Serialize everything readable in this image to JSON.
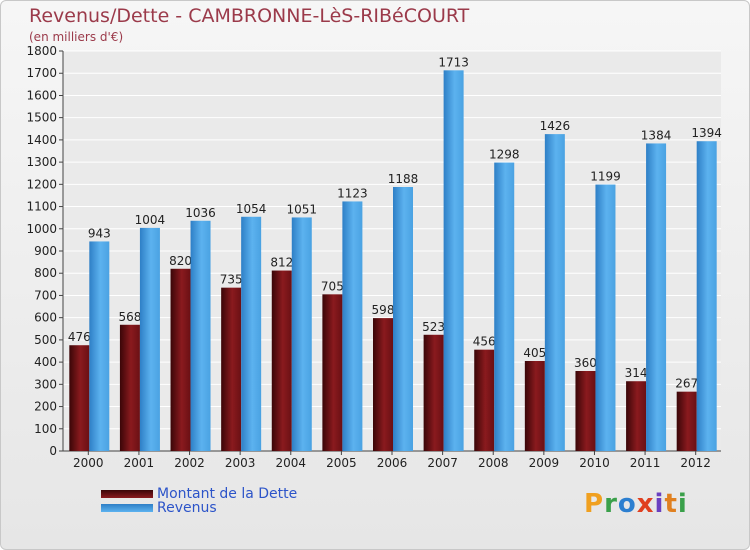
{
  "chart_data": {
    "type": "bar",
    "title": "Revenus/Dette - CAMBRONNE-LèS-RIBéCOURT",
    "subtitle": "(en milliers d'€)",
    "categories": [
      "2000",
      "2001",
      "2002",
      "2003",
      "2004",
      "2005",
      "2006",
      "2007",
      "2008",
      "2009",
      "2010",
      "2011",
      "2012"
    ],
    "series": [
      {
        "name": "Montant de la Dette",
        "color": "#7a1418",
        "values": [
          476,
          568,
          820,
          735,
          812,
          705,
          598,
          523,
          456,
          405,
          360,
          314,
          267
        ]
      },
      {
        "name": "Revenus",
        "color": "#3d9be0",
        "values": [
          943,
          1004,
          1036,
          1054,
          1051,
          1123,
          1188,
          1713,
          1298,
          1426,
          1199,
          1384,
          1394
        ]
      }
    ],
    "ylim": [
      0,
      1800
    ],
    "yticks": [
      0,
      100,
      200,
      300,
      400,
      500,
      600,
      700,
      800,
      900,
      1000,
      1100,
      1200,
      1300,
      1400,
      1500,
      1600,
      1700,
      1800
    ],
    "grid": true,
    "legend_position": "bottom-left"
  },
  "branding": {
    "logo_letters": [
      "P",
      "r",
      "o",
      "x",
      "i",
      "t",
      "i"
    ],
    "logo_colors": [
      "#f0a020",
      "#3aa04a",
      "#2c7fd0",
      "#e04020",
      "#6a40c0",
      "#e08020",
      "#3aa04a"
    ]
  }
}
